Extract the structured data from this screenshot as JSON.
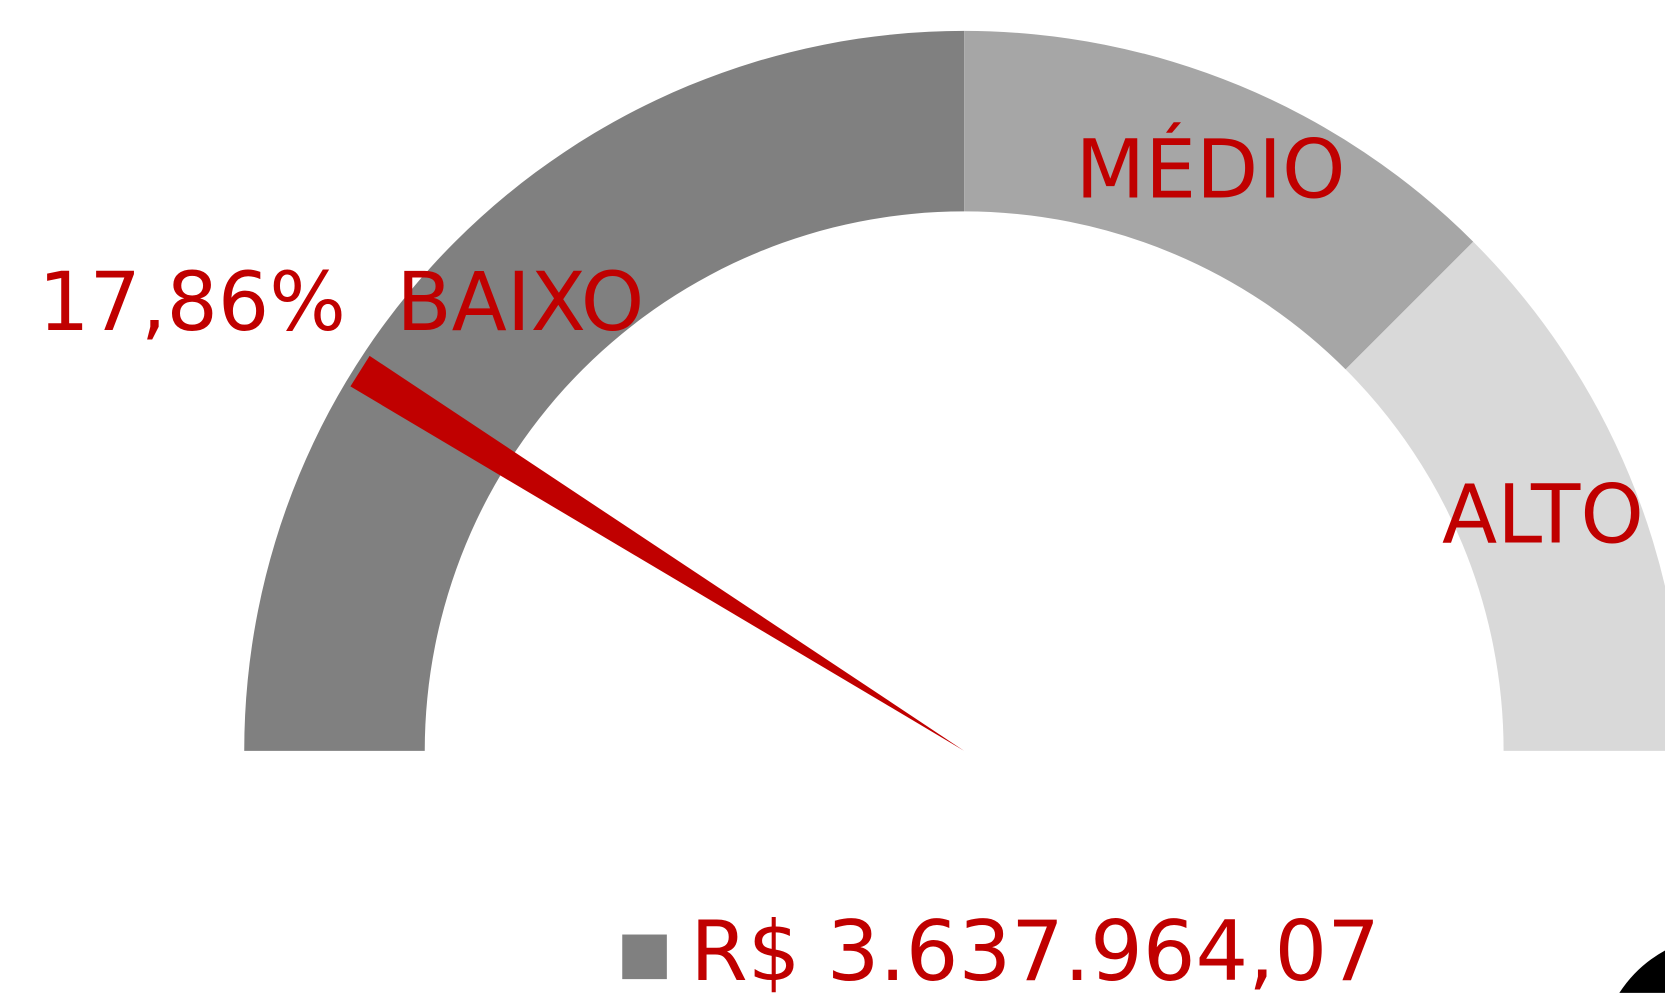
{
  "chart_data": {
    "type": "gauge",
    "value": 17.86,
    "value_label": "17,86%",
    "ylim": [
      0,
      100
    ],
    "needle_color": "#c00000",
    "bands": [
      {
        "name": "BAIXO",
        "from": 0,
        "to": 50,
        "color": "#808080"
      },
      {
        "name": "MÉDIO",
        "from": 50,
        "to": 75,
        "color": "#a6a6a6"
      },
      {
        "name": "ALTO",
        "from": 75,
        "to": 100,
        "color": "#d9d9d9"
      }
    ],
    "series": [
      {
        "name": "R$ 3.637.964,07",
        "color": "#808080"
      }
    ]
  }
}
